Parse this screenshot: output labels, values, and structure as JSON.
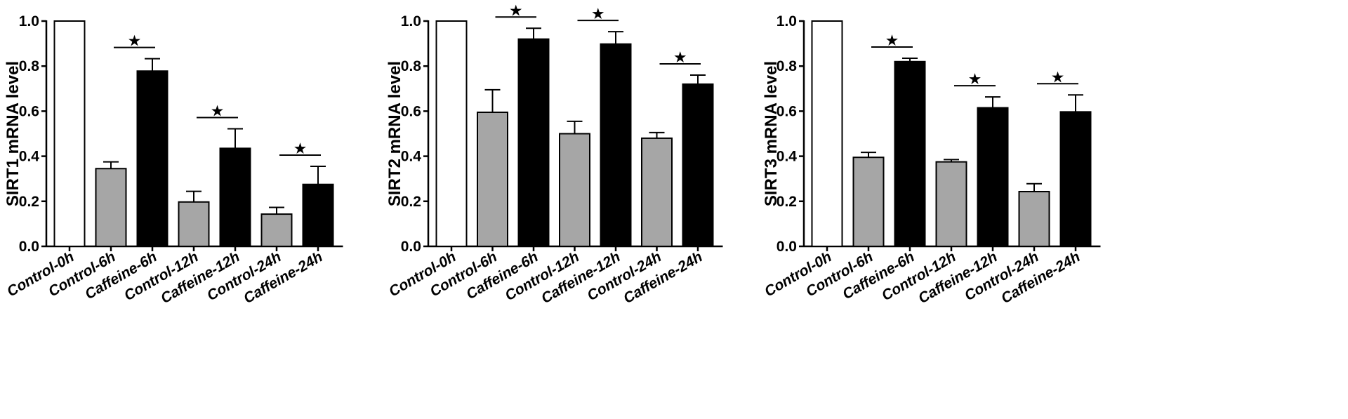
{
  "colors": {
    "control_0h": "#ffffff",
    "control": "#a6a6a6",
    "caffeine": "#000000",
    "axis": "#000000"
  },
  "significance_marker": "★",
  "chart_data": [
    {
      "type": "bar",
      "ylabel": "SIRT1 mRNA level",
      "ylim": [
        0,
        1.0
      ],
      "yticks": [
        "0.0",
        "0.2",
        "0.4",
        "0.6",
        "0.8",
        "1.0"
      ],
      "categories": [
        "Control-0h",
        "Control-6h",
        "Caffeine-6h",
        "Control-12h",
        "Caffeine-12h",
        "Control-24h",
        "Caffeine-24h"
      ],
      "values": [
        1.0,
        0.345,
        0.778,
        0.197,
        0.435,
        0.143,
        0.275
      ],
      "errors": [
        0,
        0.03,
        0.055,
        0.047,
        0.087,
        0.03,
        0.08
      ],
      "groups": [
        "control_0h",
        "control",
        "caffeine",
        "control",
        "caffeine",
        "control",
        "caffeine"
      ],
      "significance": [
        [
          1,
          2
        ],
        [
          3,
          4
        ],
        [
          5,
          6
        ]
      ]
    },
    {
      "type": "bar",
      "ylabel": "SIRT2 mRNA level",
      "ylim": [
        0,
        1.0
      ],
      "yticks": [
        "0.0",
        "0.2",
        "0.4",
        "0.6",
        "0.8",
        "1.0"
      ],
      "categories": [
        "Control-0h",
        "Control-6h",
        "Caffeine-6h",
        "Control-12h",
        "Caffeine-12h",
        "Control-24h",
        "Caffeine-24h"
      ],
      "values": [
        1.0,
        0.595,
        0.92,
        0.5,
        0.898,
        0.48,
        0.72
      ],
      "errors": [
        0,
        0.1,
        0.048,
        0.055,
        0.055,
        0.025,
        0.04
      ],
      "groups": [
        "control_0h",
        "control",
        "caffeine",
        "control",
        "caffeine",
        "control",
        "caffeine"
      ],
      "significance": [
        [
          1,
          2
        ],
        [
          3,
          4
        ],
        [
          5,
          6
        ]
      ]
    },
    {
      "type": "bar",
      "ylabel": "SIRT3 mRNA level",
      "ylim": [
        0,
        1.0
      ],
      "yticks": [
        "0.0",
        "0.2",
        "0.4",
        "0.6",
        "0.8",
        "1.0"
      ],
      "categories": [
        "Control-0h",
        "Control-6h",
        "Caffeine-6h",
        "Control-12h",
        "Caffeine-12h",
        "Control-24h",
        "Caffeine-24h"
      ],
      "values": [
        1.0,
        0.395,
        0.82,
        0.375,
        0.615,
        0.243,
        0.597
      ],
      "errors": [
        0,
        0.022,
        0.015,
        0.01,
        0.048,
        0.035,
        0.075
      ],
      "groups": [
        "control_0h",
        "control",
        "caffeine",
        "control",
        "caffeine",
        "control",
        "caffeine"
      ],
      "significance": [
        [
          1,
          2
        ],
        [
          3,
          4
        ],
        [
          5,
          6
        ]
      ]
    }
  ]
}
